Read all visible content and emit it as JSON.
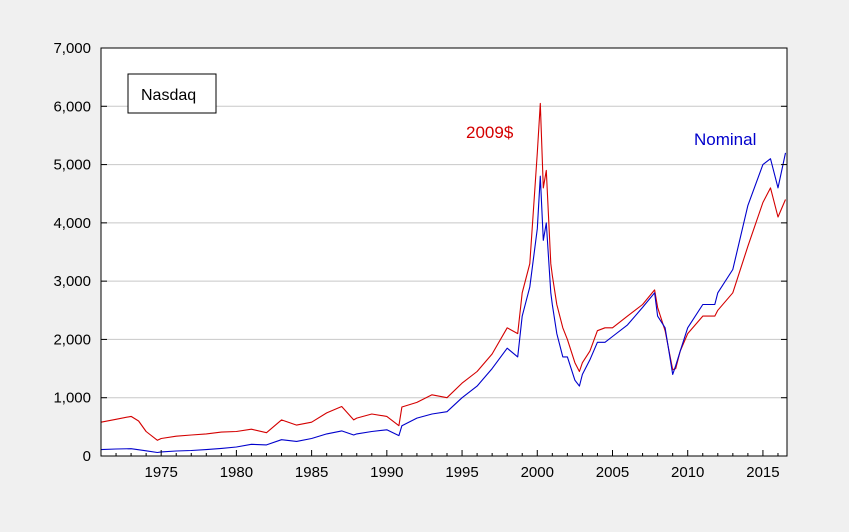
{
  "chart_data": {
    "type": "line",
    "title": "",
    "legend_box": "Nasdaq",
    "xlim": [
      1971,
      2016.6
    ],
    "ylim": [
      0,
      7000
    ],
    "x_ticks": [
      1975,
      1980,
      1985,
      1990,
      1995,
      2000,
      2005,
      2010,
      2015
    ],
    "y_ticks": [
      0,
      1000,
      2000,
      3000,
      4000,
      5000,
      6000,
      7000
    ],
    "y_tick_labels": [
      "0",
      "1,000",
      "2,000",
      "3,000",
      "4,000",
      "5,000",
      "6,000",
      "7,000"
    ],
    "grid": "horizontal",
    "colors": {
      "real": "#d40000",
      "nominal": "#0000cc"
    },
    "series": [
      {
        "name": "2009$",
        "color": "#d40000",
        "x": [
          1971,
          1972,
          1973,
          1973.5,
          1974,
          1974.75,
          1975,
          1976,
          1977,
          1978,
          1979,
          1980,
          1981,
          1982,
          1983,
          1984,
          1985,
          1986,
          1987,
          1987.8,
          1988,
          1989,
          1990,
          1990.8,
          1991,
          1992,
          1993,
          1994,
          1995,
          1996,
          1997,
          1998,
          1998.7,
          1999,
          1999.5,
          2000,
          2000.2,
          2000.4,
          2000.6,
          2000.9,
          2001,
          2001.3,
          2001.7,
          2002,
          2002.5,
          2002.8,
          2003,
          2003.5,
          2004,
          2004.5,
          2005,
          2006,
          2007,
          2007.8,
          2008,
          2008.5,
          2009,
          2009.2,
          2009.5,
          2010,
          2011,
          2011.8,
          2012,
          2013,
          2014,
          2015,
          2015.5,
          2016,
          2016.5
        ],
        "values": [
          580,
          630,
          680,
          600,
          420,
          270,
          300,
          340,
          360,
          380,
          410,
          420,
          460,
          400,
          620,
          530,
          580,
          740,
          850,
          620,
          650,
          720,
          680,
          520,
          840,
          920,
          1050,
          1000,
          1250,
          1450,
          1750,
          2200,
          2100,
          2800,
          3300,
          5200,
          6050,
          4600,
          4900,
          3300,
          3100,
          2600,
          2200,
          2000,
          1600,
          1450,
          1600,
          1800,
          2150,
          2200,
          2200,
          2400,
          2600,
          2850,
          2550,
          2150,
          1480,
          1500,
          1800,
          2100,
          2400,
          2400,
          2500,
          2800,
          3600,
          4350,
          4600,
          4100,
          4400
        ]
      },
      {
        "name": "Nominal",
        "color": "#0000cc",
        "x": [
          1971,
          1972,
          1973,
          1974,
          1974.75,
          1975,
          1976,
          1977,
          1978,
          1979,
          1980,
          1981,
          1982,
          1983,
          1984,
          1985,
          1986,
          1987,
          1987.8,
          1988,
          1989,
          1990,
          1990.8,
          1991,
          1992,
          1993,
          1994,
          1995,
          1996,
          1997,
          1998,
          1998.7,
          1999,
          1999.5,
          2000,
          2000.2,
          2000.4,
          2000.6,
          2000.9,
          2001,
          2001.3,
          2001.7,
          2002,
          2002.5,
          2002.8,
          2003,
          2003.5,
          2004,
          2004.5,
          2005,
          2006,
          2007,
          2007.8,
          2008,
          2008.5,
          2009,
          2009.2,
          2009.5,
          2010,
          2011,
          2011.8,
          2012,
          2013,
          2014,
          2015,
          2015.5,
          2016,
          2016.5
        ],
        "values": [
          110,
          120,
          125,
          90,
          60,
          70,
          85,
          95,
          110,
          130,
          155,
          200,
          190,
          280,
          250,
          300,
          380,
          430,
          360,
          380,
          420,
          450,
          350,
          520,
          650,
          720,
          760,
          1000,
          1200,
          1500,
          1850,
          1700,
          2400,
          2900,
          3900,
          4800,
          3700,
          4000,
          2800,
          2600,
          2100,
          1700,
          1700,
          1300,
          1200,
          1400,
          1650,
          1950,
          1950,
          2050,
          2250,
          2550,
          2800,
          2400,
          2200,
          1400,
          1550,
          1800,
          2200,
          2600,
          2600,
          2800,
          3200,
          4300,
          5000,
          5100,
          4600,
          5200
        ]
      }
    ]
  }
}
